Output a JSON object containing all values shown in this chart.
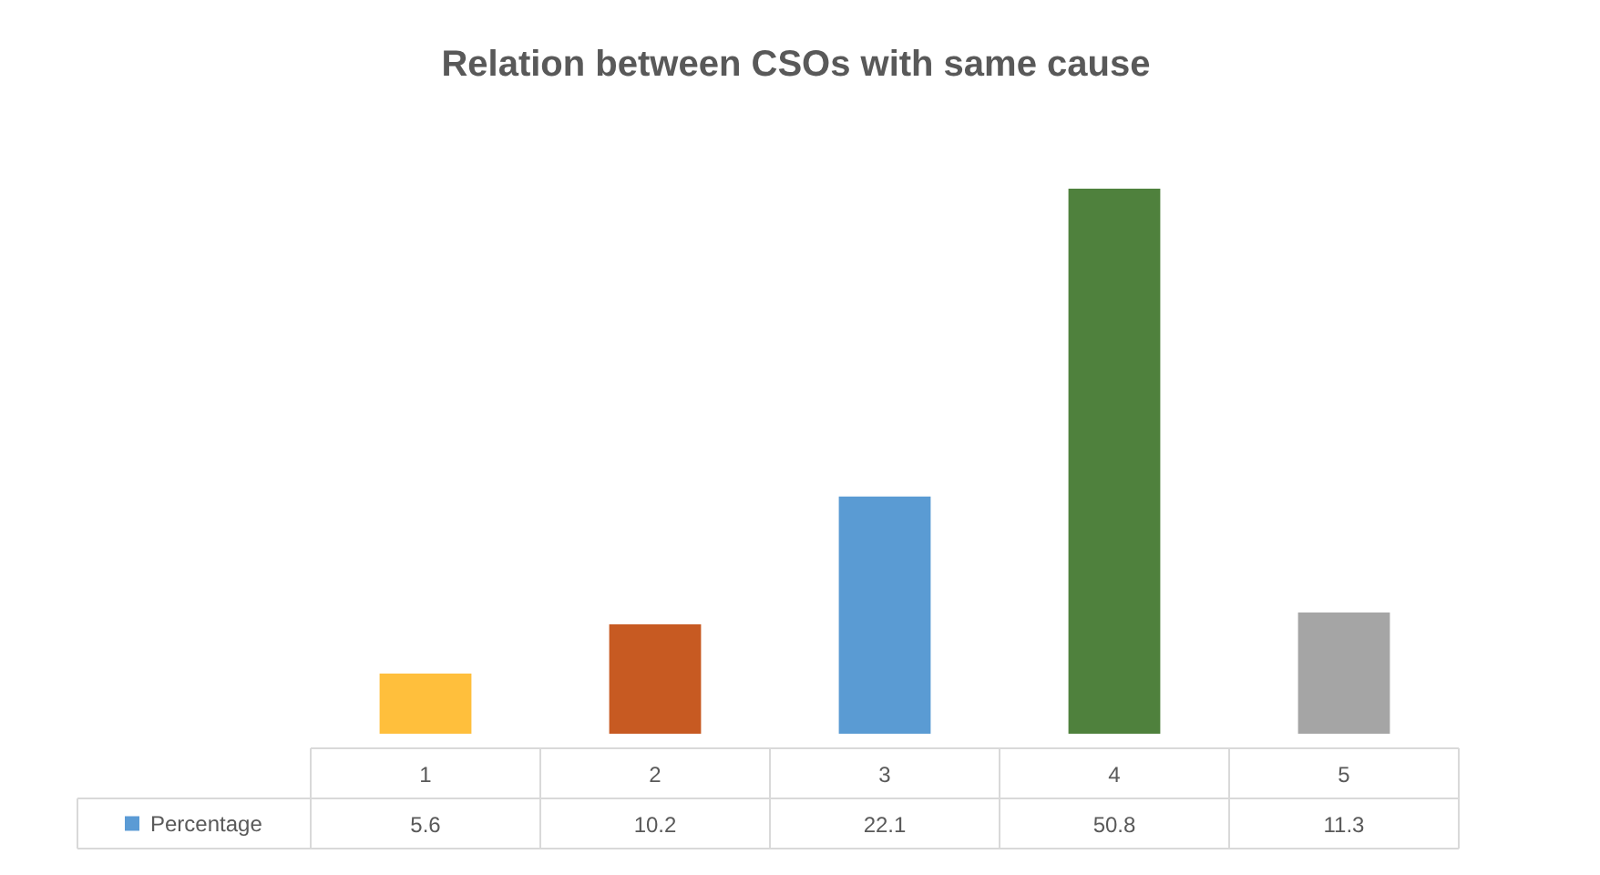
{
  "chart_data": {
    "type": "bar",
    "title": "Relation between  CSOs with same cause",
    "categories": [
      "1",
      "2",
      "3",
      "4",
      "5"
    ],
    "series": [
      {
        "name": "Percentage",
        "color": "#5b9bd5",
        "colors": [
          "#ffbf3c",
          "#c75a22",
          "#5a9bd3",
          "#4f813d",
          "#a5a5a5"
        ],
        "values": [
          5.6,
          10.2,
          22.1,
          50.8,
          11.3
        ]
      }
    ],
    "data_labels": true,
    "legend": "bottom left"
  }
}
